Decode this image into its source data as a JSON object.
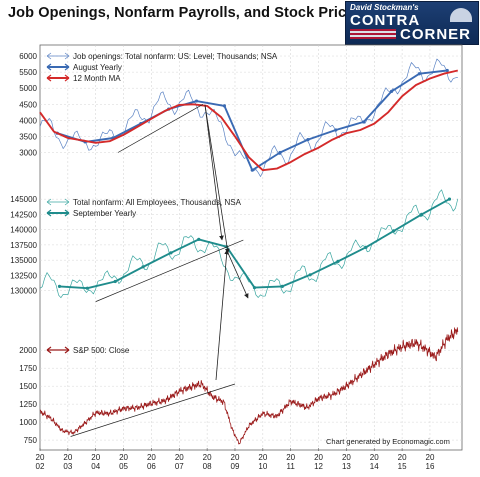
{
  "title": "Job Openings, Nonfarm Payrolls, and Stock Prices",
  "logo": {
    "top": "David Stockman's",
    "line1": "CONTRA",
    "line2": "CORNER",
    "image": "capitol-dome"
  },
  "credit": "Chart generated by Economagic.com",
  "colors": {
    "thin": "#5b83c4",
    "yearly": "#3a6ab3",
    "ma": "#d42a2a",
    "payrolls_thin": "#3aa6a0",
    "payrolls_yearly": "#1f8c8c",
    "sp500": "#9b1b1b",
    "annot": "#222222"
  },
  "chart_data": [
    {
      "type": "line",
      "x_tick_labels": [
        "20\n02",
        "20\n03",
        "20\n04",
        "20\n05",
        "20\n06",
        "20\n07",
        "20\n08",
        "20\n09",
        "20\n10",
        "20\n11",
        "20\n12",
        "20\n13",
        "20\n14",
        "20\n15",
        "20\n16"
      ],
      "xlim": [
        2002,
        2017.15
      ],
      "ylim": [
        2300,
        6250
      ],
      "y_ticks": [
        3000,
        3500,
        4000,
        4500,
        5000,
        5500,
        6000
      ],
      "y_tick_labels": [
        "3000",
        "3500",
        "4000",
        "4500",
        "5000",
        "5500",
        "6000"
      ],
      "series": [
        {
          "name": "Job openings: Total nonfarm: US: Level; Thousands; NSA",
          "style": "thin",
          "x": [
            2002,
            2002.5,
            2003,
            2003.5,
            2004,
            2004.5,
            2005,
            2005.5,
            2006,
            2006.5,
            2007,
            2007.5,
            2008,
            2008.5,
            2009,
            2009.5,
            2010,
            2010.5,
            2011,
            2011.5,
            2012,
            2012.5,
            2013,
            2013.5,
            2014,
            2014.5,
            2015,
            2015.5,
            2016,
            2016.5,
            2017
          ],
          "y": [
            3950,
            3600,
            3400,
            3350,
            3300,
            3500,
            3800,
            4050,
            4350,
            4550,
            4600,
            4550,
            4300,
            3800,
            3100,
            2500,
            2600,
            2900,
            3050,
            3300,
            3500,
            3700,
            3800,
            3950,
            4300,
            4800,
            5300,
            5500,
            5600,
            5500,
            5550
          ],
          "amplitude": 260
        },
        {
          "name": "August Yearly",
          "style": "yearly",
          "x": [
            2002.62,
            2003.62,
            2004.62,
            2005.62,
            2006.62,
            2007.62,
            2008.62,
            2009.62,
            2010.62,
            2011.62,
            2012.62,
            2013.62,
            2014.62,
            2015.62,
            2016.62
          ],
          "y": [
            3600,
            3330,
            3450,
            3900,
            4350,
            4600,
            4450,
            2450,
            3000,
            3400,
            3700,
            3950,
            4900,
            5450,
            5550
          ]
        },
        {
          "name": "12 Month MA",
          "style": "ma",
          "x": [
            2002,
            2002.5,
            2003,
            2003.5,
            2004,
            2004.5,
            2005,
            2005.5,
            2006,
            2006.5,
            2007,
            2007.5,
            2008,
            2008.5,
            2009,
            2009.5,
            2010,
            2010.5,
            2011,
            2011.5,
            2012,
            2012.5,
            2013,
            2013.5,
            2014,
            2014.5,
            2015,
            2015.5,
            2016,
            2016.5,
            2017
          ],
          "y": [
            4250,
            3650,
            3450,
            3380,
            3300,
            3350,
            3550,
            3800,
            4050,
            4300,
            4480,
            4500,
            4450,
            4100,
            3500,
            2850,
            2450,
            2500,
            2700,
            2950,
            3150,
            3400,
            3600,
            3700,
            3900,
            4250,
            4750,
            5100,
            5300,
            5450,
            5550
          ]
        }
      ]
    },
    {
      "type": "line",
      "xlim": [
        2002,
        2017.15
      ],
      "ylim": [
        126500,
        146500
      ],
      "y_ticks": [
        130000,
        132500,
        135000,
        137500,
        140000,
        142500,
        145000
      ],
      "y_tick_labels": [
        "130000",
        "132500",
        "135000",
        "137500",
        "140000",
        "142500",
        "145000"
      ],
      "series": [
        {
          "name": "Total nonfarm: All Employees, Thousands, NSA",
          "style": "thin",
          "x": [
            2002,
            2003,
            2004,
            2005,
            2006,
            2007,
            2008,
            2009,
            2010,
            2011,
            2012,
            2013,
            2014,
            2015,
            2016,
            2017
          ],
          "y": [
            131200,
            130300,
            130900,
            133100,
            135600,
            137300,
            137800,
            132300,
            129900,
            131400,
            133600,
            135800,
            138300,
            141100,
            143800,
            145400
          ],
          "amplitude": 1400
        },
        {
          "name": "September Yearly",
          "style": "yearly",
          "x": [
            2002.7,
            2003.7,
            2004.7,
            2005.7,
            2006.7,
            2007.7,
            2008.7,
            2009.7,
            2010.7,
            2011.7,
            2012.7,
            2013.7,
            2014.7,
            2015.7,
            2016.7
          ],
          "y": [
            130700,
            130400,
            131500,
            133900,
            136200,
            138400,
            137200,
            130500,
            130700,
            132600,
            134800,
            137100,
            139800,
            142500,
            145000
          ]
        }
      ]
    },
    {
      "type": "line",
      "xlim": [
        2002,
        2017.15
      ],
      "ylim": [
        640,
        2420
      ],
      "y_ticks": [
        750,
        1000,
        1250,
        1500,
        1750,
        2000
      ],
      "y_tick_labels": [
        "750",
        "1000",
        "1250",
        "1500",
        "1750",
        "2000"
      ],
      "series": [
        {
          "name": "S&P 500: Close",
          "style": "sp500",
          "x": [
            2002,
            2002.4,
            2002.8,
            2003.2,
            2003.6,
            2004,
            2004.5,
            2005,
            2005.5,
            2006,
            2006.5,
            2007,
            2007.5,
            2007.8,
            2008.2,
            2008.6,
            2008.9,
            2009.15,
            2009.5,
            2010,
            2010.5,
            2011,
            2011.6,
            2012,
            2012.5,
            2013,
            2013.5,
            2014,
            2014.5,
            2015,
            2015.5,
            2015.9,
            2016.2,
            2016.6,
            2017
          ],
          "y": [
            1150,
            1050,
            880,
            850,
            980,
            1130,
            1120,
            1190,
            1200,
            1260,
            1300,
            1430,
            1500,
            1530,
            1350,
            1280,
            900,
            700,
            950,
            1120,
            1080,
            1290,
            1200,
            1330,
            1380,
            1500,
            1650,
            1800,
            1950,
            2050,
            2100,
            2000,
            1900,
            2150,
            2280
          ]
        }
      ]
    }
  ],
  "annotations": [
    {
      "name": "trend-line-job-openings",
      "x1": 2004.8,
      "y1": 3000,
      "x2": 2007.85,
      "y2": 4500,
      "panel": 0
    },
    {
      "name": "trend-line-payrolls",
      "x1": 2004,
      "y1": 128200,
      "x2": 2009.3,
      "y2": 138300,
      "panel": 1
    },
    {
      "name": "trend-line-sp500",
      "x1": 2003.1,
      "y1": 800,
      "x2": 2009.0,
      "y2": 1530,
      "panel": 2
    }
  ]
}
